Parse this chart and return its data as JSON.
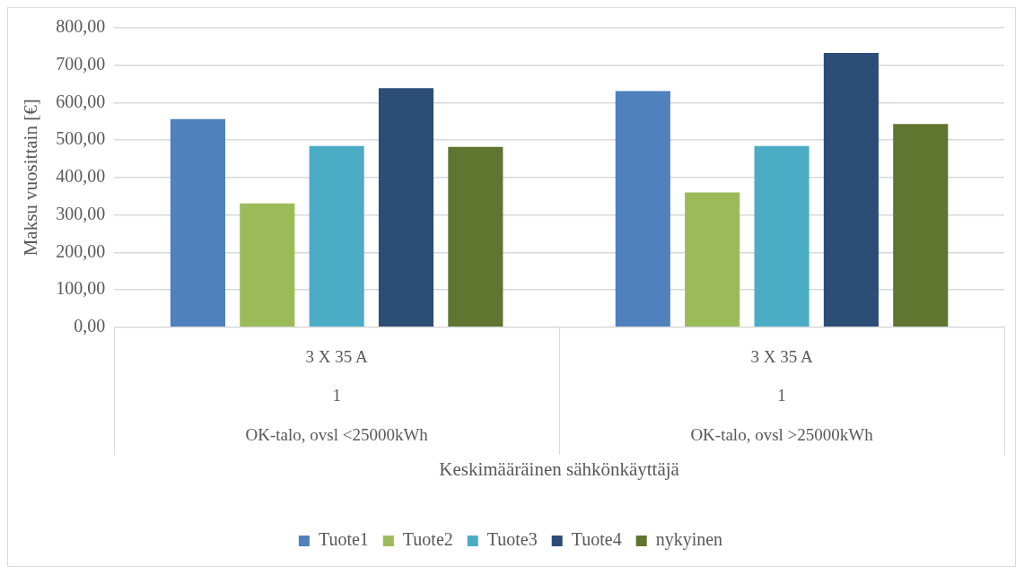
{
  "chart_data": {
    "type": "bar",
    "xlabel": "Keskimääräinen sähkönkäyttäjä",
    "ylabel": "Maksu vuosittain [€]",
    "categories": [
      "3 X 35 A\n1\nOK-talo, ovsl <25000kWh",
      "3 X 35 A\n1\nOK-talo, ovsl >25000kWh"
    ],
    "series": [
      {
        "name": "Tuote1",
        "color": "#4f81bd",
        "values": [
          556,
          631
        ]
      },
      {
        "name": "Tuote2",
        "color": "#9bbb59",
        "values": [
          331,
          360
        ]
      },
      {
        "name": "Tuote3",
        "color": "#4bacc6",
        "values": [
          484,
          484
        ]
      },
      {
        "name": "Tuote4",
        "color": "#2c4d75",
        "values": [
          639,
          733
        ]
      },
      {
        "name": "nykyinen",
        "color": "#5f7530",
        "values": [
          482,
          543
        ]
      }
    ],
    "ylim": [
      0,
      800
    ],
    "yticks": [
      {
        "value": 0,
        "label": "0,00"
      },
      {
        "value": 100,
        "label": "100,00"
      },
      {
        "value": 200,
        "label": "200,00"
      },
      {
        "value": 300,
        "label": "300,00"
      },
      {
        "value": 400,
        "label": "400,00"
      },
      {
        "value": 500,
        "label": "500,00"
      },
      {
        "value": 600,
        "label": "600,00"
      },
      {
        "value": 700,
        "label": "700,00"
      },
      {
        "value": 800,
        "label": "800,00"
      }
    ],
    "grid": "y",
    "legend": "bottom"
  }
}
